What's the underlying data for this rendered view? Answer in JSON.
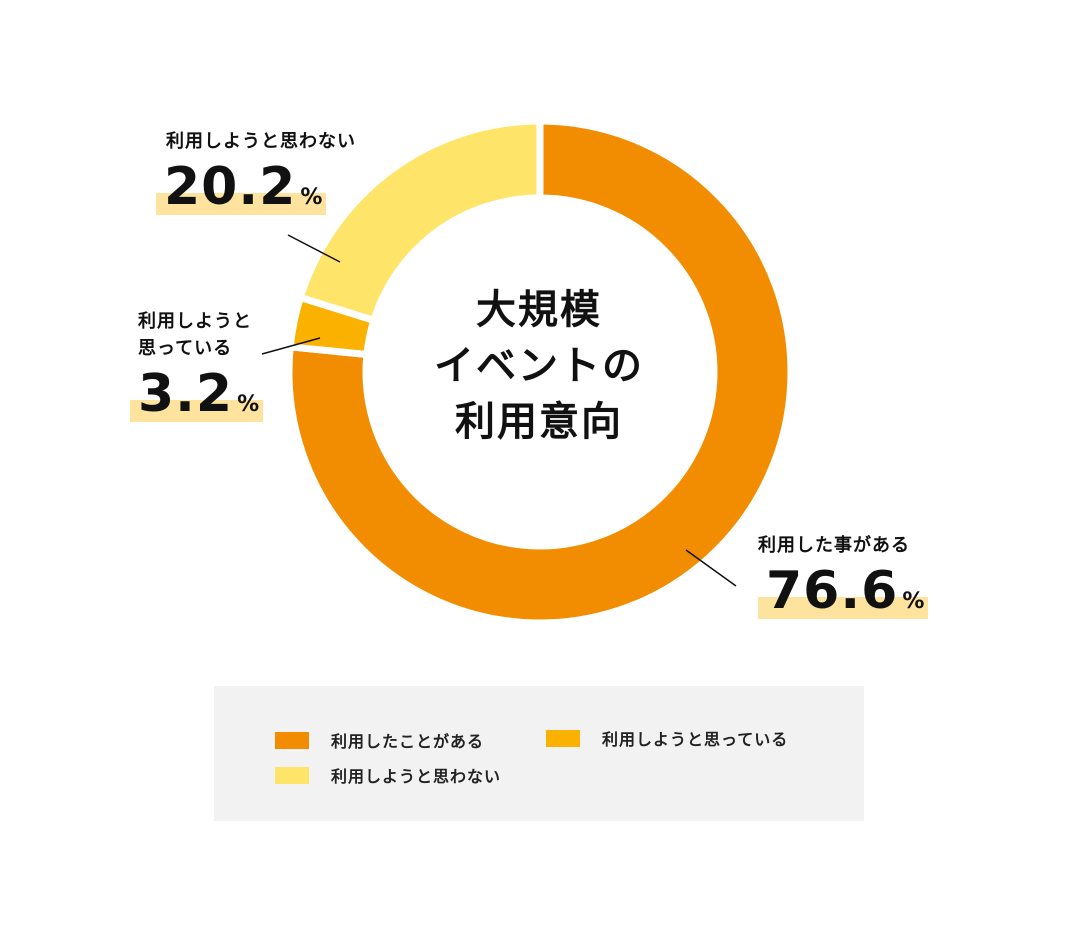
{
  "chart_data": {
    "type": "pie",
    "title_lines": [
      "大規模",
      "イベントの",
      "利用意向"
    ],
    "series": [
      {
        "name": "利用したことがある",
        "value": 76.6,
        "color": "#f28c00",
        "callout_label": "利用した事がある"
      },
      {
        "name": "利用しようと思っている",
        "value": 3.2,
        "color": "#fbb100",
        "callout_label_lines": [
          "利用しようと",
          "思っている"
        ]
      },
      {
        "name": "利用しようと思わない",
        "value": 20.2,
        "color": "#ffe46a",
        "callout_label": "利用しようと思わない"
      }
    ],
    "unit": "%",
    "legend_position": "bottom"
  },
  "labels": {
    "used": {
      "label": "利用した事がある",
      "value": "76.6",
      "unit": "%"
    },
    "plan": {
      "label_line1": "利用しようと",
      "label_line2": "思っている",
      "value": "3.2",
      "unit": "%"
    },
    "not": {
      "label": "利用しようと思わない",
      "value": "20.2",
      "unit": "%"
    }
  },
  "legend": [
    {
      "label": "利用したことがある",
      "color": "#f28c00"
    },
    {
      "label": "利用しようと思っている",
      "color": "#fbb100"
    },
    {
      "label": "利用しようと思わない",
      "color": "#ffe46a"
    }
  ]
}
